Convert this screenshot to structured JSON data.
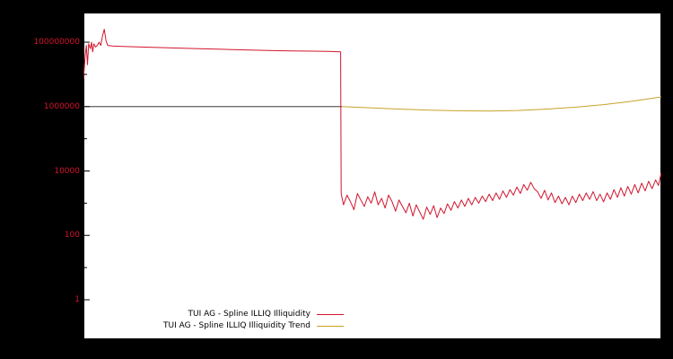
{
  "chart_data": {
    "type": "line",
    "title": "",
    "xlabel": "",
    "ylabel": "",
    "yscale": "log10",
    "ylim_log10": [
      -1.23,
      8.92
    ],
    "x_axis": "fraction of plot width, 0 to 1 (no x tick labels shown)",
    "points_format": "[x_fraction_0_to_1, log10_of_value]",
    "grid": false,
    "colors": {
      "background": "#000000",
      "plot_background": "#ffffff",
      "axis": "#000000",
      "tick_label": "#d2152e"
    },
    "yticks": [
      {
        "label": "100000000",
        "log": 8
      },
      {
        "label": "1000000",
        "log": 6
      },
      {
        "label": "10000",
        "log": 4
      },
      {
        "label": "100",
        "log": 2
      },
      {
        "label": "1",
        "log": 0
      }
    ],
    "minor_ticks_log": [
      1,
      3,
      5,
      7
    ],
    "legend": {
      "position": "bottom-left-inside",
      "entries": [
        "TUI AG - Spline ILLIQ Illiquidity",
        "TUI AG - Spline ILLIQ Illiquidity Trend"
      ]
    },
    "series": [
      {
        "name": "TUI AG - Spline ILLIQ Illiquidity",
        "color": "#d2152e",
        "width": 1,
        "in_legend": true,
        "points": [
          [
            0.0,
            6.85
          ],
          [
            0.003,
            7.55
          ],
          [
            0.005,
            7.9
          ],
          [
            0.007,
            7.3
          ],
          [
            0.009,
            7.95
          ],
          [
            0.012,
            7.8
          ],
          [
            0.014,
            8.0
          ],
          [
            0.016,
            7.7
          ],
          [
            0.018,
            7.95
          ],
          [
            0.021,
            7.85
          ],
          [
            0.024,
            7.9
          ],
          [
            0.027,
            8.0
          ],
          [
            0.03,
            7.9
          ],
          [
            0.033,
            8.2
          ],
          [
            0.036,
            8.4
          ],
          [
            0.039,
            8.05
          ],
          [
            0.042,
            7.9
          ],
          [
            0.05,
            7.88
          ],
          [
            0.08,
            7.86
          ],
          [
            0.12,
            7.84
          ],
          [
            0.16,
            7.82
          ],
          [
            0.2,
            7.8
          ],
          [
            0.24,
            7.78
          ],
          [
            0.28,
            7.76
          ],
          [
            0.32,
            7.74
          ],
          [
            0.36,
            7.73
          ],
          [
            0.4,
            7.72
          ],
          [
            0.43,
            7.71
          ],
          [
            0.445,
            7.7
          ],
          [
            0.446,
            3.3
          ],
          [
            0.45,
            2.95
          ],
          [
            0.456,
            3.25
          ],
          [
            0.462,
            3.05
          ],
          [
            0.468,
            2.8
          ],
          [
            0.474,
            3.3
          ],
          [
            0.48,
            3.1
          ],
          [
            0.486,
            2.9
          ],
          [
            0.492,
            3.2
          ],
          [
            0.498,
            3.0
          ],
          [
            0.504,
            3.35
          ],
          [
            0.51,
            2.95
          ],
          [
            0.516,
            3.15
          ],
          [
            0.522,
            2.85
          ],
          [
            0.528,
            3.25
          ],
          [
            0.534,
            3.05
          ],
          [
            0.54,
            2.75
          ],
          [
            0.546,
            3.1
          ],
          [
            0.552,
            2.9
          ],
          [
            0.558,
            2.7
          ],
          [
            0.564,
            3.0
          ],
          [
            0.57,
            2.6
          ],
          [
            0.576,
            2.95
          ],
          [
            0.582,
            2.72
          ],
          [
            0.588,
            2.5
          ],
          [
            0.594,
            2.88
          ],
          [
            0.6,
            2.65
          ],
          [
            0.606,
            2.92
          ],
          [
            0.612,
            2.55
          ],
          [
            0.618,
            2.85
          ],
          [
            0.624,
            2.68
          ],
          [
            0.63,
            2.98
          ],
          [
            0.636,
            2.78
          ],
          [
            0.642,
            3.05
          ],
          [
            0.648,
            2.85
          ],
          [
            0.654,
            3.1
          ],
          [
            0.66,
            2.9
          ],
          [
            0.666,
            3.15
          ],
          [
            0.672,
            2.95
          ],
          [
            0.678,
            3.18
          ],
          [
            0.684,
            3.0
          ],
          [
            0.69,
            3.22
          ],
          [
            0.696,
            3.05
          ],
          [
            0.702,
            3.28
          ],
          [
            0.708,
            3.08
          ],
          [
            0.714,
            3.32
          ],
          [
            0.72,
            3.12
          ],
          [
            0.726,
            3.38
          ],
          [
            0.732,
            3.18
          ],
          [
            0.738,
            3.42
          ],
          [
            0.744,
            3.25
          ],
          [
            0.75,
            3.5
          ],
          [
            0.756,
            3.3
          ],
          [
            0.762,
            3.58
          ],
          [
            0.768,
            3.4
          ],
          [
            0.774,
            3.65
          ],
          [
            0.78,
            3.45
          ],
          [
            0.786,
            3.35
          ],
          [
            0.792,
            3.15
          ],
          [
            0.798,
            3.4
          ],
          [
            0.804,
            3.1
          ],
          [
            0.81,
            3.32
          ],
          [
            0.816,
            3.02
          ],
          [
            0.822,
            3.22
          ],
          [
            0.828,
            2.98
          ],
          [
            0.834,
            3.18
          ],
          [
            0.84,
            2.95
          ],
          [
            0.846,
            3.22
          ],
          [
            0.852,
            3.02
          ],
          [
            0.858,
            3.28
          ],
          [
            0.864,
            3.08
          ],
          [
            0.87,
            3.32
          ],
          [
            0.876,
            3.12
          ],
          [
            0.882,
            3.36
          ],
          [
            0.888,
            3.08
          ],
          [
            0.894,
            3.28
          ],
          [
            0.9,
            3.04
          ],
          [
            0.906,
            3.32
          ],
          [
            0.912,
            3.12
          ],
          [
            0.918,
            3.42
          ],
          [
            0.924,
            3.18
          ],
          [
            0.93,
            3.48
          ],
          [
            0.936,
            3.22
          ],
          [
            0.942,
            3.52
          ],
          [
            0.948,
            3.28
          ],
          [
            0.954,
            3.58
          ],
          [
            0.96,
            3.32
          ],
          [
            0.966,
            3.62
          ],
          [
            0.972,
            3.38
          ],
          [
            0.978,
            3.68
          ],
          [
            0.984,
            3.45
          ],
          [
            0.99,
            3.72
          ],
          [
            0.995,
            3.55
          ],
          [
            1.0,
            3.95
          ]
        ]
      },
      {
        "name": "TUI AG - Spline ILLIQ Illiquidity Trend",
        "color": "#c9a227",
        "width": 1,
        "in_legend": true,
        "points": [
          [
            0.447,
            6.0
          ],
          [
            0.5,
            5.96
          ],
          [
            0.55,
            5.92
          ],
          [
            0.6,
            5.89
          ],
          [
            0.65,
            5.87
          ],
          [
            0.7,
            5.86
          ],
          [
            0.75,
            5.88
          ],
          [
            0.8,
            5.92
          ],
          [
            0.85,
            5.98
          ],
          [
            0.9,
            6.06
          ],
          [
            0.95,
            6.17
          ],
          [
            1.0,
            6.3
          ]
        ]
      },
      {
        "name": "baseline-1000000",
        "color": "#1a1a1a",
        "width": 0.8,
        "in_legend": false,
        "points": [
          [
            0.0,
            6.0
          ],
          [
            0.447,
            6.0
          ]
        ]
      }
    ]
  }
}
